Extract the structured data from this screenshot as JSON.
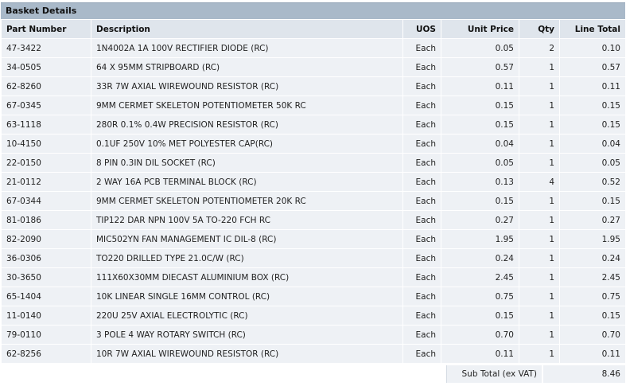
{
  "title": "Basket Details",
  "columns": {
    "part": "Part Number",
    "desc": "Description",
    "uos": "UOS",
    "price": "Unit Price",
    "qty": "Qty",
    "total": "Line Total"
  },
  "rows": [
    {
      "part": "47-3422",
      "desc": "1N4002A 1A 100V RECTIFIER DIODE (RC)",
      "uos": "Each",
      "price": "0.05",
      "qty": "2",
      "total": "0.10"
    },
    {
      "part": "34-0505",
      "desc": "64 X 95MM STRIPBOARD (RC)",
      "uos": "Each",
      "price": "0.57",
      "qty": "1",
      "total": "0.57"
    },
    {
      "part": "62-8260",
      "desc": "33R 7W AXIAL WIREWOUND RESISTOR (RC)",
      "uos": "Each",
      "price": "0.11",
      "qty": "1",
      "total": "0.11"
    },
    {
      "part": "67-0345",
      "desc": "9MM CERMET SKELETON POTENTIOMETER 50K RC",
      "uos": "Each",
      "price": "0.15",
      "qty": "1",
      "total": "0.15"
    },
    {
      "part": "63-1118",
      "desc": "280R 0.1% 0.4W PRECISION RESISTOR (RC)",
      "uos": "Each",
      "price": "0.15",
      "qty": "1",
      "total": "0.15"
    },
    {
      "part": "10-4150",
      "desc": "0.1UF 250V 10% MET POLYESTER CAP(RC)",
      "uos": "Each",
      "price": "0.04",
      "qty": "1",
      "total": "0.04"
    },
    {
      "part": "22-0150",
      "desc": "8 PIN 0.3IN DIL SOCKET (RC)",
      "uos": "Each",
      "price": "0.05",
      "qty": "1",
      "total": "0.05"
    },
    {
      "part": "21-0112",
      "desc": "2 WAY 16A PCB TERMINAL BLOCK (RC)",
      "uos": "Each",
      "price": "0.13",
      "qty": "4",
      "total": "0.52"
    },
    {
      "part": "67-0344",
      "desc": "9MM CERMET SKELETON POTENTIOMETER 20K RC",
      "uos": "Each",
      "price": "0.15",
      "qty": "1",
      "total": "0.15"
    },
    {
      "part": "81-0186",
      "desc": "TIP122 DAR NPN 100V 5A TO-220 FCH RC",
      "uos": "Each",
      "price": "0.27",
      "qty": "1",
      "total": "0.27"
    },
    {
      "part": "82-2090",
      "desc": "MIC502YN FAN MANAGEMENT IC DIL-8 (RC)",
      "uos": "Each",
      "price": "1.95",
      "qty": "1",
      "total": "1.95"
    },
    {
      "part": "36-0306",
      "desc": "TO220 DRILLED TYPE 21.0C/W (RC)",
      "uos": "Each",
      "price": "0.24",
      "qty": "1",
      "total": "0.24"
    },
    {
      "part": "30-3650",
      "desc": "111X60X30MM DIECAST ALUMINIUM BOX (RC)",
      "uos": "Each",
      "price": "2.45",
      "qty": "1",
      "total": "2.45"
    },
    {
      "part": "65-1404",
      "desc": "10K LINEAR SINGLE 16MM CONTROL (RC)",
      "uos": "Each",
      "price": "0.75",
      "qty": "1",
      "total": "0.75"
    },
    {
      "part": "11-0140",
      "desc": "220U 25V AXIAL ELECTROLYTIC (RC)",
      "uos": "Each",
      "price": "0.15",
      "qty": "1",
      "total": "0.15"
    },
    {
      "part": "79-0110",
      "desc": "3 POLE 4 WAY ROTARY SWITCH (RC)",
      "uos": "Each",
      "price": "0.70",
      "qty": "1",
      "total": "0.70"
    },
    {
      "part": "62-8256",
      "desc": "10R 7W AXIAL WIREWOUND RESISTOR (RC)",
      "uos": "Each",
      "price": "0.11",
      "qty": "1",
      "total": "0.11"
    }
  ],
  "subtotal": {
    "label": "Sub Total (ex VAT)",
    "value": "8.46"
  },
  "colors": {
    "title_bg": "#a9b9c9",
    "header_bg": "#dfe5ec",
    "row_bg": "#eef1f5"
  }
}
